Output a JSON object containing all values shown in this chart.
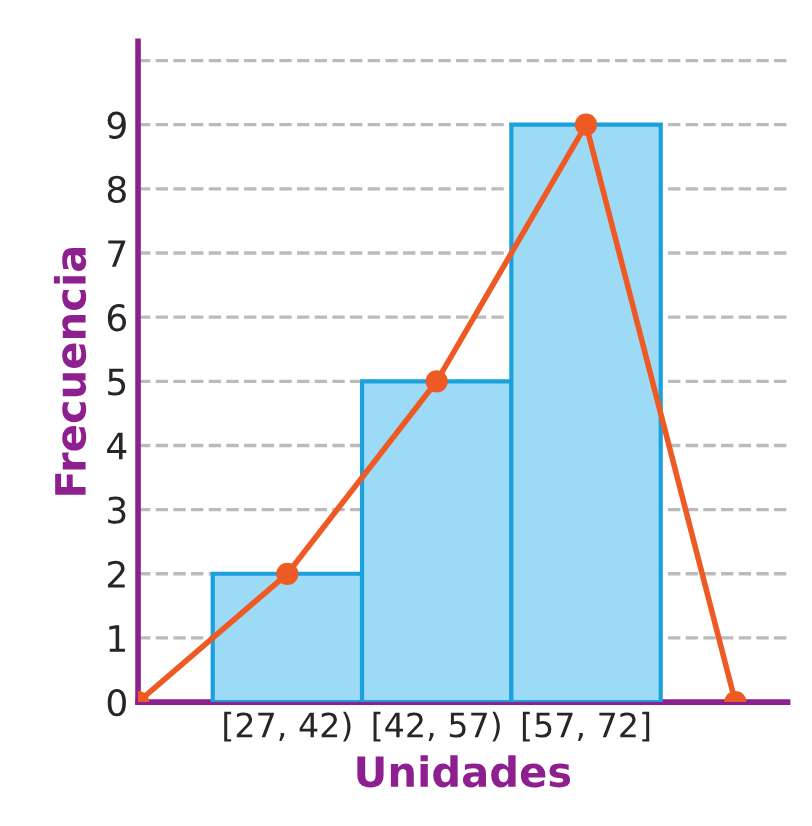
{
  "chart_data": {
    "type": "bar",
    "xlabel": "Unidades",
    "ylabel": "Frecuencia",
    "categories": [
      null,
      "[27, 42)",
      "[42, 57)",
      "[57, 72]",
      null
    ],
    "series": [
      {
        "color": "#9ddaf6",
        "values": [
          null,
          2,
          5,
          9,
          null
        ]
      },
      {
        "type": "line",
        "color": "#ee5a24",
        "values": [
          0,
          2,
          5,
          9,
          0
        ]
      }
    ],
    "ylim": [
      0,
      10.3
    ],
    "yticks": [
      0,
      1,
      2,
      3,
      4,
      5,
      6,
      7,
      8,
      9,
      {
        "value": 10,
        "label": null
      }
    ],
    "grid": "y",
    "marker": "circle",
    "line_style": "solid",
    "legend": false
  }
}
